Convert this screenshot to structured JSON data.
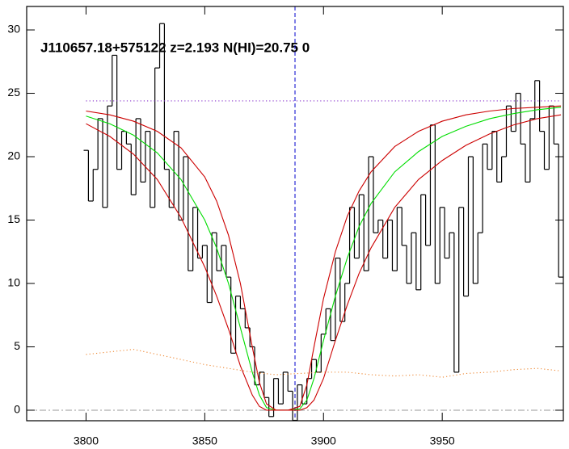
{
  "chart_data": {
    "type": "line",
    "title": "J110657.18+575122 z=2.193 N(HI)=20.75 0",
    "xlim": [
      3775,
      4001
    ],
    "ylim": [
      -0.83,
      31.85
    ],
    "xticks": [
      3800,
      3850,
      3900,
      3950
    ],
    "yticks": [
      0,
      5,
      10,
      15,
      20,
      25,
      30
    ],
    "vline": {
      "value": 3888,
      "color": "#0000cc"
    },
    "hline": {
      "value": 0,
      "color": "#999999"
    },
    "series": [
      {
        "color": "#000000",
        "style": "step",
        "x": [
          3800,
          3802,
          3804,
          3806,
          3808,
          3810,
          3812,
          3814,
          3816,
          3818,
          3820,
          3822,
          3824,
          3826,
          3828,
          3830,
          3832,
          3834,
          3836,
          3838,
          3840,
          3842,
          3844,
          3846,
          3848,
          3850,
          3852,
          3854,
          3856,
          3858,
          3860,
          3862,
          3864,
          3866,
          3868,
          3870,
          3872,
          3874,
          3876,
          3878,
          3880,
          3882,
          3884,
          3886,
          3888,
          3890,
          3892,
          3894,
          3896,
          3898,
          3900,
          3902,
          3904,
          3906,
          3908,
          3910,
          3912,
          3914,
          3916,
          3918,
          3920,
          3922,
          3924,
          3926,
          3928,
          3930,
          3932,
          3934,
          3936,
          3938,
          3940,
          3942,
          3944,
          3946,
          3948,
          3950,
          3952,
          3954,
          3956,
          3958,
          3960,
          3962,
          3964,
          3966,
          3968,
          3970,
          3972,
          3974,
          3976,
          3978,
          3980,
          3982,
          3984,
          3986,
          3988,
          3990,
          3992,
          3994,
          3996,
          3998,
          4000
        ],
        "values": [
          20.5,
          16.5,
          19,
          23,
          16,
          24,
          28,
          19,
          22,
          21,
          17,
          23,
          18,
          22,
          16,
          27,
          30.5,
          19,
          16,
          22,
          15,
          20,
          11,
          16,
          12,
          13,
          8.5,
          14,
          11,
          13,
          10.5,
          4.5,
          9,
          8,
          6.5,
          5,
          2,
          3,
          1,
          -0.5,
          2.5,
          0.5,
          3,
          1.5,
          -0.8,
          2,
          0.5,
          2.5,
          4,
          3,
          6,
          8,
          5.5,
          12,
          7,
          10,
          16,
          12,
          17,
          11,
          20,
          14,
          15,
          12,
          15,
          11,
          16,
          13,
          10,
          14,
          9.5,
          17,
          13,
          22.5,
          10,
          16,
          12,
          14,
          3,
          16,
          9,
          20,
          10,
          14,
          21,
          19,
          22,
          18,
          20,
          24,
          22,
          25,
          21,
          18,
          23,
          26,
          22,
          19,
          24,
          21,
          10.5
        ]
      },
      {
        "color": "#00dd00",
        "style": "solid",
        "x": [
          3800,
          3810,
          3820,
          3830,
          3840,
          3850,
          3855,
          3860,
          3865,
          3870,
          3873,
          3876,
          3880,
          3885,
          3890,
          3893,
          3896,
          3900,
          3905,
          3910,
          3915,
          3920,
          3930,
          3940,
          3950,
          3960,
          3970,
          3980,
          3990,
          4000
        ],
        "values": [
          23.2,
          22.6,
          21.7,
          20.3,
          18.2,
          15,
          12.8,
          10,
          6.5,
          3,
          1.2,
          0.2,
          0,
          0,
          0.1,
          0.8,
          2.5,
          5.5,
          9,
          12,
          14.5,
          16.3,
          18.8,
          20.4,
          21.6,
          22.4,
          23,
          23.4,
          23.7,
          23.9
        ]
      },
      {
        "color": "#cc0000",
        "style": "solid",
        "x": [
          3800,
          3810,
          3820,
          3830,
          3840,
          3850,
          3855,
          3860,
          3865,
          3870,
          3873,
          3876,
          3880,
          3885,
          3890,
          3893,
          3896,
          3900,
          3905,
          3910,
          3915,
          3920,
          3930,
          3940,
          3950,
          3960,
          3970,
          3980,
          3990,
          4000
        ],
        "values": [
          23.6,
          23.3,
          22.8,
          22,
          20.7,
          18.4,
          16.5,
          13.8,
          10,
          5,
          2.2,
          0.5,
          0,
          0,
          0.3,
          2,
          5,
          8.8,
          12.5,
          15.3,
          17.3,
          18.8,
          20.8,
          22,
          22.8,
          23.3,
          23.6,
          23.8,
          23.9,
          24
        ]
      },
      {
        "color": "#cc0000",
        "style": "solid",
        "x": [
          3800,
          3810,
          3820,
          3830,
          3840,
          3850,
          3855,
          3860,
          3865,
          3870,
          3873,
          3876,
          3880,
          3885,
          3890,
          3893,
          3896,
          3900,
          3905,
          3910,
          3915,
          3920,
          3930,
          3940,
          3950,
          3960,
          3970,
          3980,
          3990,
          4000
        ],
        "values": [
          22.6,
          21.6,
          20.2,
          18.2,
          15.2,
          11.3,
          9,
          6.4,
          3.5,
          1.2,
          0.3,
          0,
          0,
          0,
          0,
          0.2,
          0.8,
          2.5,
          5.5,
          8.3,
          10.8,
          12.8,
          16,
          18.2,
          19.7,
          20.9,
          21.8,
          22.5,
          23,
          23.3
        ]
      },
      {
        "color": "#8833cc",
        "style": "dotted",
        "x": [
          3800,
          4000
        ],
        "values": [
          24.4,
          24.4
        ]
      },
      {
        "color": "#ee8833",
        "style": "dotted",
        "x": [
          3800,
          3810,
          3820,
          3830,
          3840,
          3850,
          3860,
          3870,
          3880,
          3890,
          3900,
          3910,
          3920,
          3930,
          3940,
          3950,
          3960,
          3970,
          3980,
          3990,
          4000
        ],
        "values": [
          4.4,
          4.6,
          4.8,
          4.4,
          4.0,
          3.6,
          3.3,
          3.0,
          2.8,
          2.9,
          3.0,
          3.0,
          2.8,
          2.7,
          2.8,
          2.6,
          2.9,
          3.0,
          3.2,
          3.3,
          3.1
        ]
      }
    ]
  }
}
